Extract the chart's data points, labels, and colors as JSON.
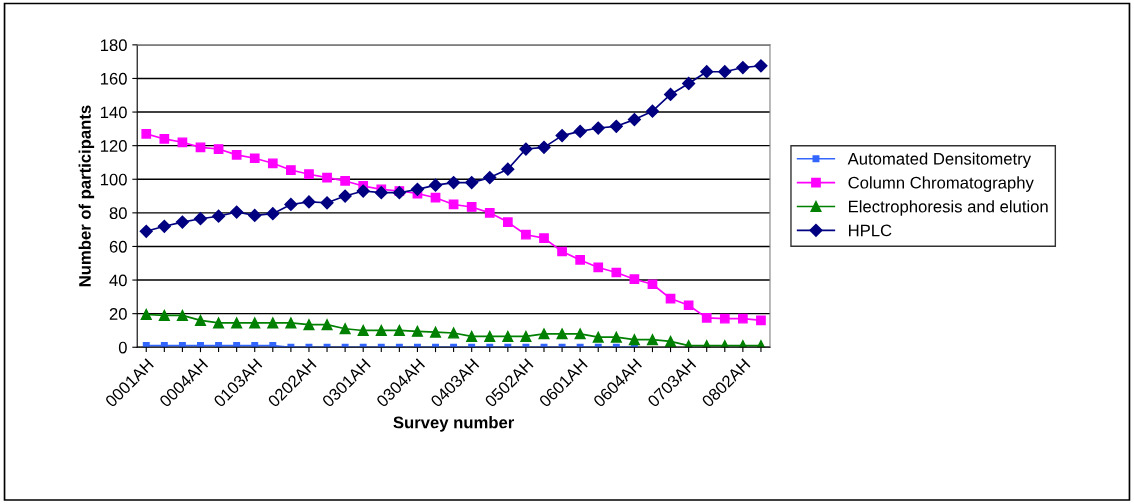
{
  "chart_data": {
    "type": "line",
    "xlabel": "Survey number",
    "ylabel": "Number of participants",
    "categories": [
      "0001AH",
      null,
      null,
      "0004AH",
      null,
      null,
      "0103AH",
      null,
      null,
      "0202AH",
      null,
      null,
      "0301AH",
      null,
      null,
      "0304AH",
      null,
      null,
      "0403AH",
      null,
      null,
      "0502AH",
      null,
      null,
      "0601AH",
      null,
      null,
      "0604AH",
      null,
      null,
      "0703AH",
      null,
      null,
      "0802AH",
      null
    ],
    "series": [
      {
        "name": "Automated Densitometry",
        "color": "#3366ff",
        "marker": "square",
        "values": [
          1,
          1,
          1,
          1,
          1,
          1,
          1,
          1,
          0,
          0,
          0,
          0,
          0,
          0,
          0,
          0,
          0,
          0,
          0,
          0,
          0,
          0,
          0,
          0,
          0,
          0,
          0,
          0,
          null,
          null,
          null,
          null,
          null,
          null,
          null
        ]
      },
      {
        "name": "Column Chromatography",
        "color": "#ff00ff",
        "marker": "square",
        "values": [
          127,
          124,
          122,
          119,
          118,
          114.5,
          112.5,
          109.5,
          105.5,
          103,
          101,
          99,
          96,
          94,
          93,
          91.5,
          89,
          85,
          83.5,
          80,
          74.5,
          67,
          65,
          57,
          52,
          47.5,
          44.5,
          40.5,
          37.5,
          29,
          25,
          17.5,
          17,
          17,
          16
        ]
      },
      {
        "name": "Electrophoresis and elution",
        "color": "#008000",
        "marker": "triangle",
        "values": [
          19.5,
          19,
          19,
          16,
          14.5,
          14.5,
          14.5,
          14.5,
          14.5,
          13.5,
          13.5,
          11,
          10,
          10,
          10,
          9.5,
          9,
          8.5,
          6.5,
          6.5,
          6.5,
          6.5,
          8,
          8,
          8,
          6,
          6,
          4.5,
          4.5,
          3.5,
          1,
          1,
          1,
          1,
          1
        ]
      },
      {
        "name": "HPLC",
        "color": "#000080",
        "marker": "diamond",
        "values": [
          69,
          72,
          74.5,
          76.5,
          78,
          80.5,
          78.5,
          79.5,
          85,
          86.5,
          86,
          90,
          93,
          92,
          92,
          94,
          96.5,
          98,
          98,
          101,
          106,
          118,
          119,
          126,
          128.5,
          130.5,
          131.5,
          135.5,
          140.5,
          150.5,
          157,
          164,
          164,
          166.5,
          167.5
        ]
      }
    ],
    "ylim": [
      0,
      180
    ],
    "yticks": [
      0,
      20,
      40,
      60,
      80,
      100,
      120,
      140,
      160,
      180
    ],
    "grid": "y",
    "legend": "right",
    "line_style": "solid"
  }
}
